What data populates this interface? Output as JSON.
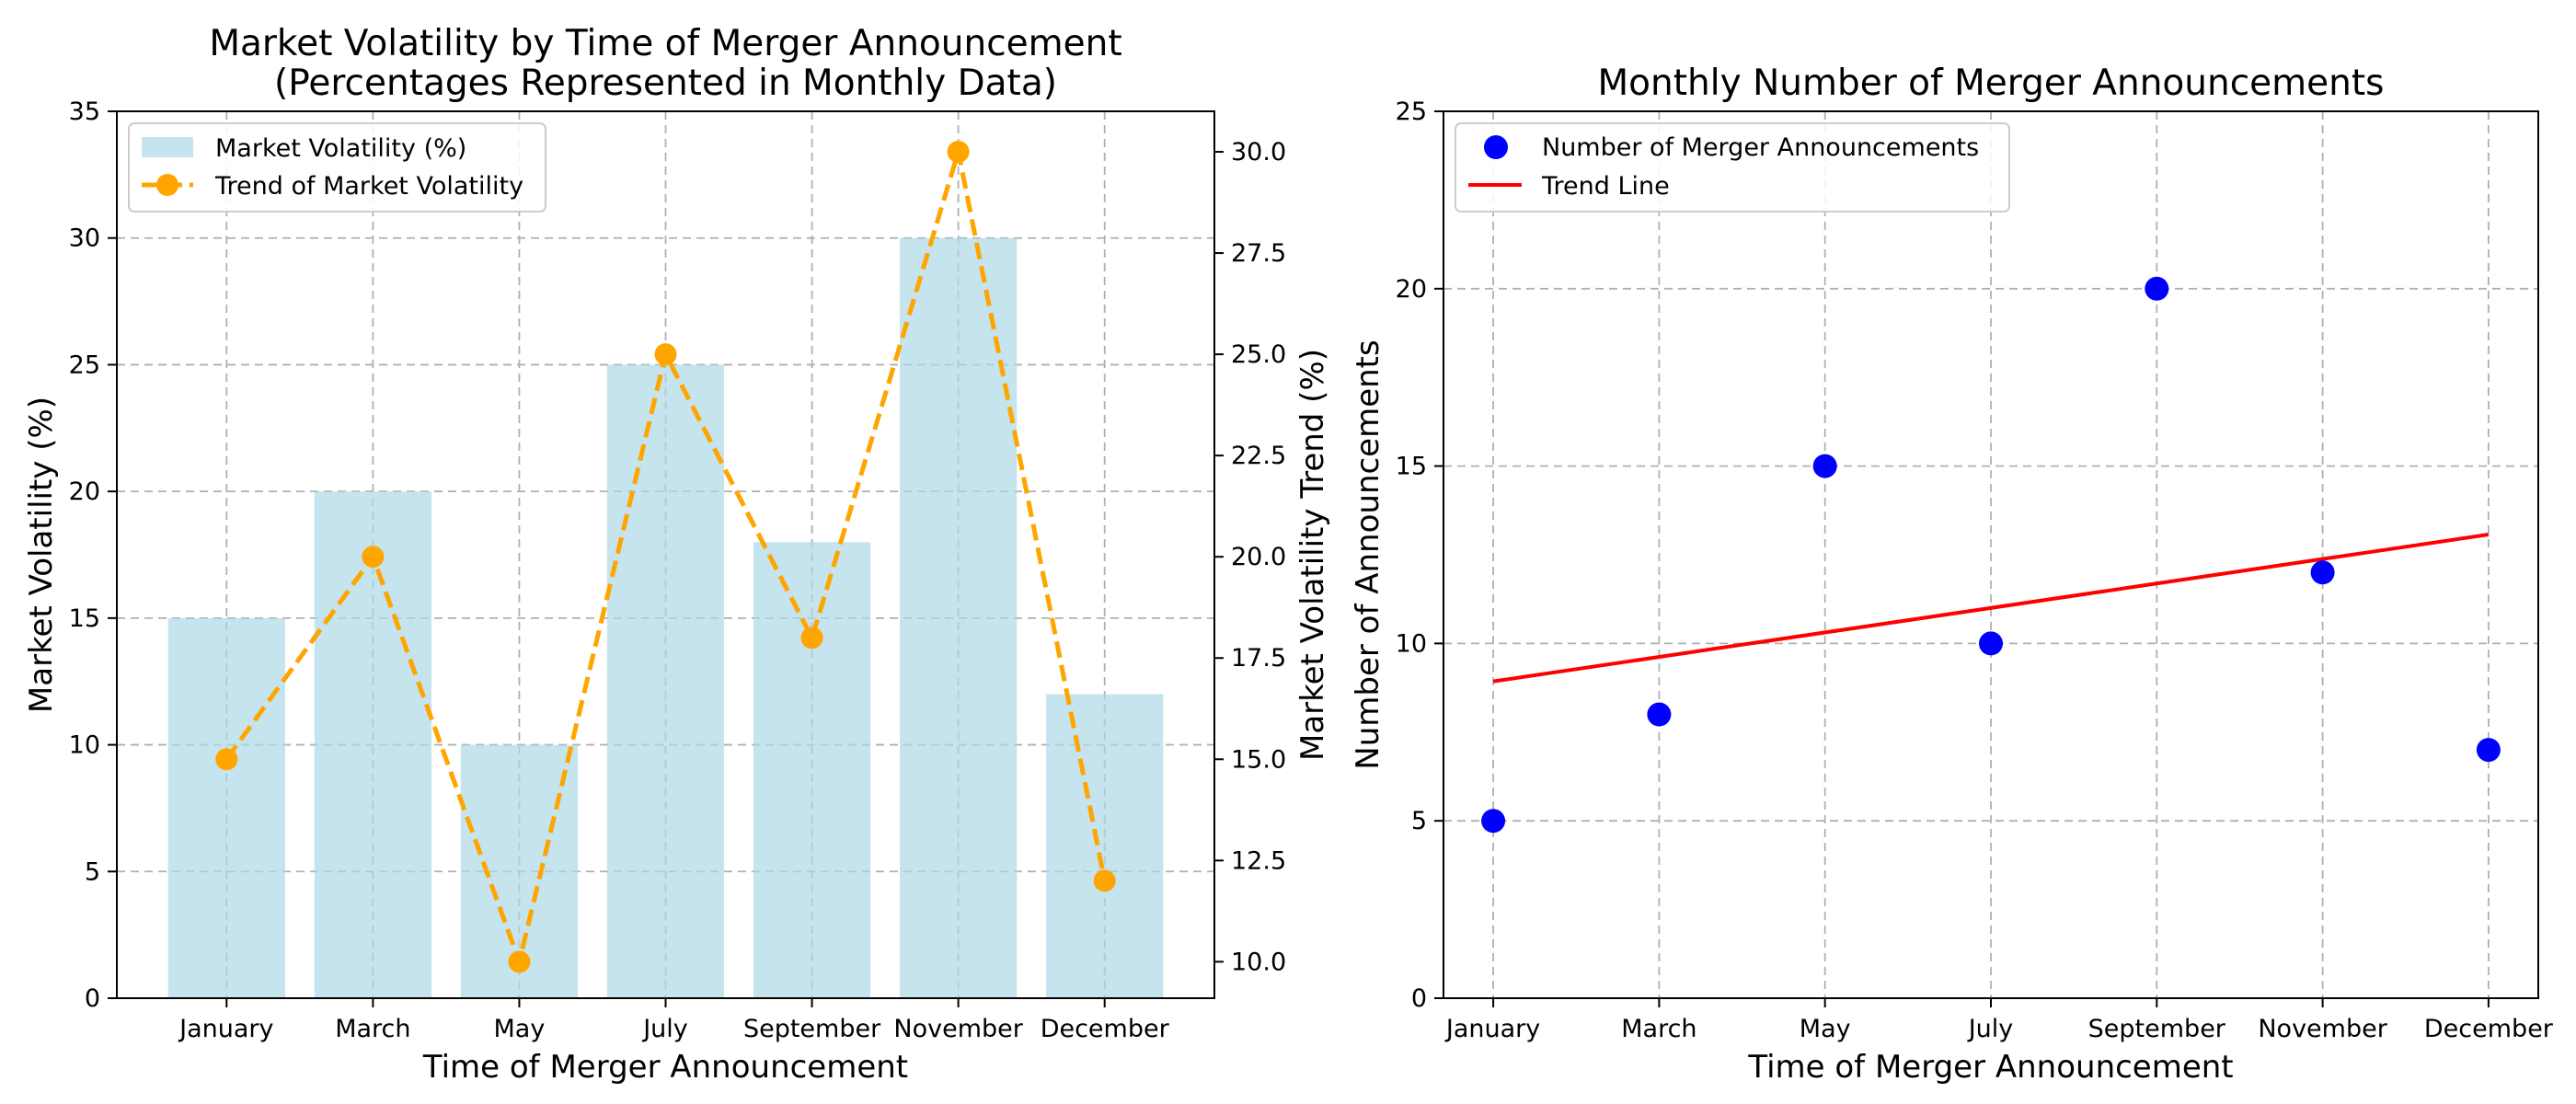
{
  "chart_data": [
    {
      "type": "bar",
      "title_line1": "Market Volatility by Time of Merger Announcement",
      "title_line2": "(Percentages Represented in Monthly Data)",
      "xlabel": "Time of Merger Announcement",
      "ylabel": "Market Volatility (%)",
      "ylabel_right": "Market Volatility Trend (%)",
      "categories": [
        "January",
        "March",
        "May",
        "July",
        "September",
        "November",
        "December"
      ],
      "ylim": [
        0,
        35
      ],
      "yticks": [
        "0",
        "5",
        "10",
        "15",
        "20",
        "25",
        "30",
        "35"
      ],
      "ylim_right": [
        9.1,
        31.0
      ],
      "yticks_right": [
        "10.0",
        "12.5",
        "15.0",
        "17.5",
        "20.0",
        "22.5",
        "25.0",
        "27.5",
        "30.0"
      ],
      "grid": true,
      "legend_position": "upper left",
      "series": [
        {
          "name": "Market Volatility (%)",
          "kind": "bar",
          "axis": "left",
          "color": "#add8e6",
          "values": [
            15,
            20,
            10,
            25,
            18,
            30,
            12
          ]
        },
        {
          "name": "Trend of Market Volatility",
          "kind": "line",
          "axis": "right",
          "color": "#ffa500",
          "style": "dashed",
          "marker": "circle",
          "values": [
            15,
            20,
            10,
            25,
            18,
            30,
            12
          ]
        }
      ]
    },
    {
      "type": "scatter",
      "title": "Monthly Number of Merger Announcements",
      "xlabel": "Time of Merger Announcement",
      "ylabel": "Number of Announcements",
      "categories": [
        "January",
        "March",
        "May",
        "July",
        "September",
        "November",
        "December"
      ],
      "ylim": [
        0,
        25
      ],
      "yticks": [
        "0",
        "5",
        "10",
        "15",
        "20",
        "25"
      ],
      "grid": true,
      "legend_position": "upper left",
      "series": [
        {
          "name": "Number of Merger Announcements",
          "kind": "scatter",
          "color": "#0000ff",
          "values": [
            5,
            8,
            15,
            10,
            20,
            12,
            7
          ]
        },
        {
          "name": "Trend Line",
          "kind": "line",
          "color": "#ff0000",
          "start": 8.93,
          "end": 13.07
        }
      ]
    }
  ]
}
